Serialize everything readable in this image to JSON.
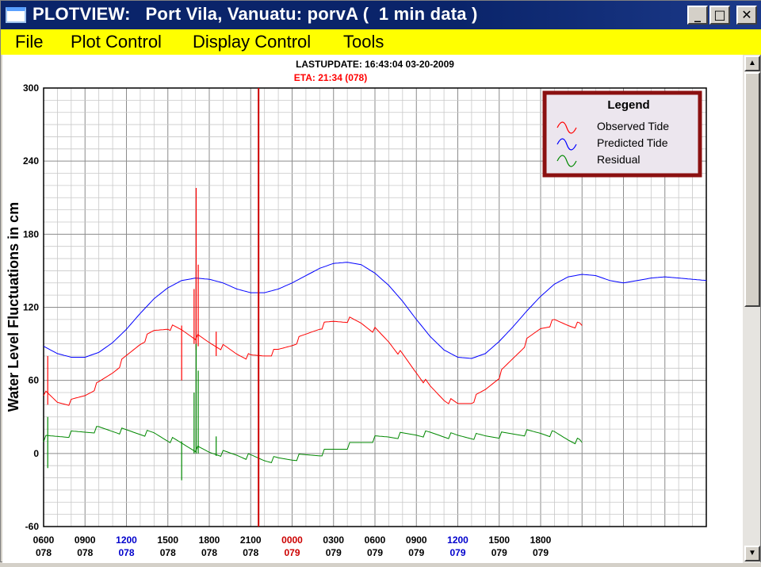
{
  "window": {
    "title": "PLOTVIEW:   Port Vila, Vanuatu: porvA (  1 min data )",
    "minimize_glyph": "_",
    "maximize_glyph": "□",
    "close_glyph": "✕",
    "icon": "window-app-icon"
  },
  "menu": {
    "items": [
      "File",
      "Plot Control",
      "Display Control",
      "Tools"
    ]
  },
  "scrollbar": {
    "up_glyph": "▲",
    "down_glyph": "▼"
  },
  "chart_data": {
    "type": "line",
    "header_lines": [
      "LASTUPDATE: 16:43:04  03-20-2009",
      "ETA: 21:34 (078)"
    ],
    "eta_color": "#ff0000",
    "ylabel": "Water Level Fluctuations in cm",
    "ylim": [
      -60,
      300
    ],
    "y_ticks": [
      300,
      240,
      180,
      120,
      60,
      0,
      -60
    ],
    "x_range_hours": [
      6,
      54
    ],
    "x_tick_labels": [
      {
        "time": "0600",
        "day": "078",
        "color": "#000000"
      },
      {
        "time": "0900",
        "day": "078",
        "color": "#000000"
      },
      {
        "time": "1200",
        "day": "078",
        "color": "#0000cc"
      },
      {
        "time": "1500",
        "day": "078",
        "color": "#000000"
      },
      {
        "time": "1800",
        "day": "078",
        "color": "#000000"
      },
      {
        "time": "2100",
        "day": "078",
        "color": "#000000"
      },
      {
        "time": "0000",
        "day": "079",
        "color": "#cc0000"
      },
      {
        "time": "0300",
        "day": "079",
        "color": "#000000"
      },
      {
        "time": "0600",
        "day": "079",
        "color": "#000000"
      },
      {
        "time": "0900",
        "day": "079",
        "color": "#000000"
      },
      {
        "time": "1200",
        "day": "079",
        "color": "#0000cc"
      },
      {
        "time": "1500",
        "day": "079",
        "color": "#000000"
      },
      {
        "time": "1800",
        "day": "079",
        "color": "#000000"
      }
    ],
    "eta_marker_hours": 21.57,
    "grid": true,
    "legend": {
      "title": "Legend",
      "position": "top-right",
      "entries": [
        {
          "label": "Observed Tide",
          "color": "#ff0000"
        },
        {
          "label": "Predicted Tide",
          "color": "#0000ff"
        },
        {
          "label": "Residual",
          "color": "#008800"
        }
      ]
    },
    "series": [
      {
        "label": "Predicted Tide",
        "color": "#0000ff",
        "x": [
          6,
          7,
          8,
          9,
          10,
          11,
          12,
          13,
          14,
          15,
          16,
          17,
          18,
          19,
          20,
          21,
          22,
          23,
          24,
          25,
          26,
          27,
          28,
          29,
          30,
          31,
          32,
          33,
          34,
          35,
          36,
          37,
          38,
          39,
          40,
          41,
          42,
          43,
          44,
          45,
          46,
          47,
          48,
          49,
          50,
          51,
          52,
          53,
          54
        ],
        "y": [
          88,
          82,
          79,
          79,
          83,
          91,
          102,
          115,
          127,
          136,
          142,
          144,
          143,
          140,
          135,
          132,
          132,
          135,
          140,
          146,
          152,
          156,
          157,
          155,
          148,
          138,
          125,
          110,
          96,
          85,
          79,
          78,
          82,
          92,
          104,
          117,
          129,
          139,
          145,
          147,
          146,
          142,
          140,
          142,
          144,
          145,
          144,
          143,
          142
        ]
      },
      {
        "label": "Observed Tide",
        "color": "#ff0000",
        "x": [
          6,
          7,
          8,
          9,
          10,
          11,
          12,
          13,
          14,
          15,
          16,
          17,
          18,
          19,
          20,
          21,
          22,
          23,
          24,
          25,
          26,
          27,
          28,
          29,
          30,
          31,
          32,
          33,
          34,
          35,
          36,
          37,
          38,
          39,
          40,
          41,
          42,
          43,
          44,
          45,
          46,
          47,
          48,
          49,
          50,
          51,
          52,
          53,
          54
        ],
        "y": [
          50,
          42,
          42,
          48,
          57,
          67,
          79,
          91,
          100,
          104,
          101,
          96,
          91,
          87,
          82,
          79,
          81,
          84,
          90,
          97,
          104,
          108,
          110,
          107,
          101,
          92,
          80,
          67,
          54,
          45,
          40,
          43,
          52,
          64,
          78,
          92,
          103,
          108,
          106,
          105,
          null,
          null,
          null,
          null,
          null,
          null,
          null,
          null,
          null
        ]
      },
      {
        "label": "Residual",
        "color": "#008800",
        "x": [
          6,
          7,
          8,
          9,
          10,
          11,
          12,
          13,
          14,
          15,
          16,
          17,
          18,
          19,
          20,
          21,
          22,
          23,
          24,
          25,
          26,
          27,
          28,
          29,
          30,
          31,
          32,
          33,
          34,
          35,
          36,
          37,
          38,
          39,
          40,
          41,
          42,
          43,
          44,
          45,
          46,
          47,
          48,
          49,
          50,
          51,
          52,
          53,
          54
        ],
        "y": [
          12,
          14,
          16,
          18,
          20,
          19,
          18,
          17,
          16,
          12,
          8,
          4,
          1,
          0,
          -1,
          -3,
          -5,
          -5,
          -4,
          -2,
          0,
          3,
          6,
          9,
          12,
          14,
          15,
          16,
          16,
          15,
          14,
          14,
          14,
          15,
          16,
          17,
          17,
          16,
          12,
          9,
          null,
          null,
          null,
          null,
          null,
          null,
          null,
          null,
          null
        ]
      }
    ],
    "spikes": [
      {
        "series": "Observed Tide",
        "x": 6.3,
        "y_low": 40,
        "y_high": 80
      },
      {
        "series": "Observed Tide",
        "x": 16.0,
        "y_low": 60,
        "y_high": 105
      },
      {
        "series": "Observed Tide",
        "x": 16.9,
        "y_low": 90,
        "y_high": 135
      },
      {
        "series": "Observed Tide",
        "x": 17.05,
        "y_low": 85,
        "y_high": 218
      },
      {
        "series": "Observed Tide",
        "x": 17.2,
        "y_low": 88,
        "y_high": 155
      },
      {
        "series": "Observed Tide",
        "x": 18.5,
        "y_low": 80,
        "y_high": 100
      },
      {
        "series": "Residual",
        "x": 6.3,
        "y_low": -12,
        "y_high": 30
      },
      {
        "series": "Residual",
        "x": 16.0,
        "y_low": -22,
        "y_high": 10
      },
      {
        "series": "Residual",
        "x": 16.9,
        "y_low": 0,
        "y_high": 50
      },
      {
        "series": "Residual",
        "x": 17.05,
        "y_low": 0,
        "y_high": 90
      },
      {
        "series": "Residual",
        "x": 17.2,
        "y_low": 0,
        "y_high": 68
      },
      {
        "series": "Residual",
        "x": 18.5,
        "y_low": -2,
        "y_high": 14
      }
    ]
  }
}
